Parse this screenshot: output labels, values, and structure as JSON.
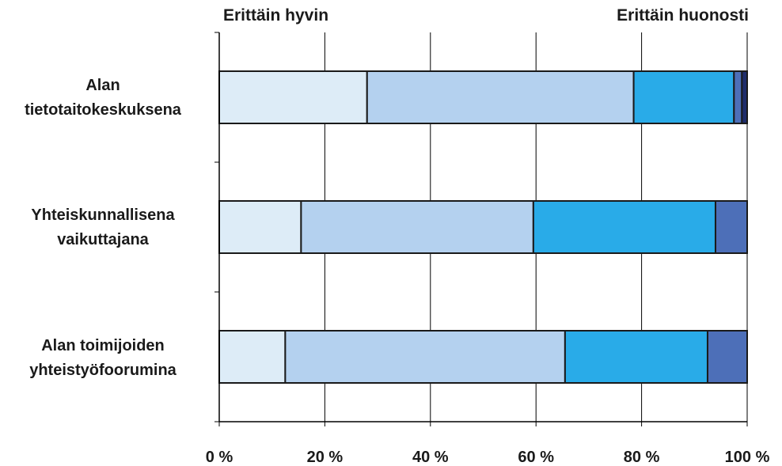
{
  "scale_labels": {
    "left": "Erittäin hyvin",
    "right": "Erittäin huonosti"
  },
  "chart_data": {
    "type": "bar",
    "orientation": "horizontal",
    "stacked": true,
    "normalized": true,
    "categories": [
      [
        "Alan",
        "tietotaitokeskuksena"
      ],
      [
        "Yhteiskunnallisena",
        "vaikuttajana"
      ],
      [
        "Alan toimijoiden",
        "yhteistyöfoorumina"
      ]
    ],
    "series": [
      {
        "color": "#ddecf7",
        "values": [
          28,
          15.5,
          12.5
        ]
      },
      {
        "color": "#b4d1ef",
        "values": [
          50.5,
          44,
          53
        ]
      },
      {
        "color": "#29abe8",
        "values": [
          19,
          34.5,
          27
        ]
      },
      {
        "color": "#4d6fb8",
        "values": [
          1.5,
          6,
          7.5
        ]
      },
      {
        "color": "#1f2d6b",
        "values": [
          1,
          0,
          0
        ]
      }
    ],
    "xlim": [
      0,
      100
    ],
    "xticks": [
      "0 %",
      "20 %",
      "40 %",
      "60 %",
      "80 %",
      "100 %"
    ],
    "grid": true,
    "legend": "none"
  }
}
